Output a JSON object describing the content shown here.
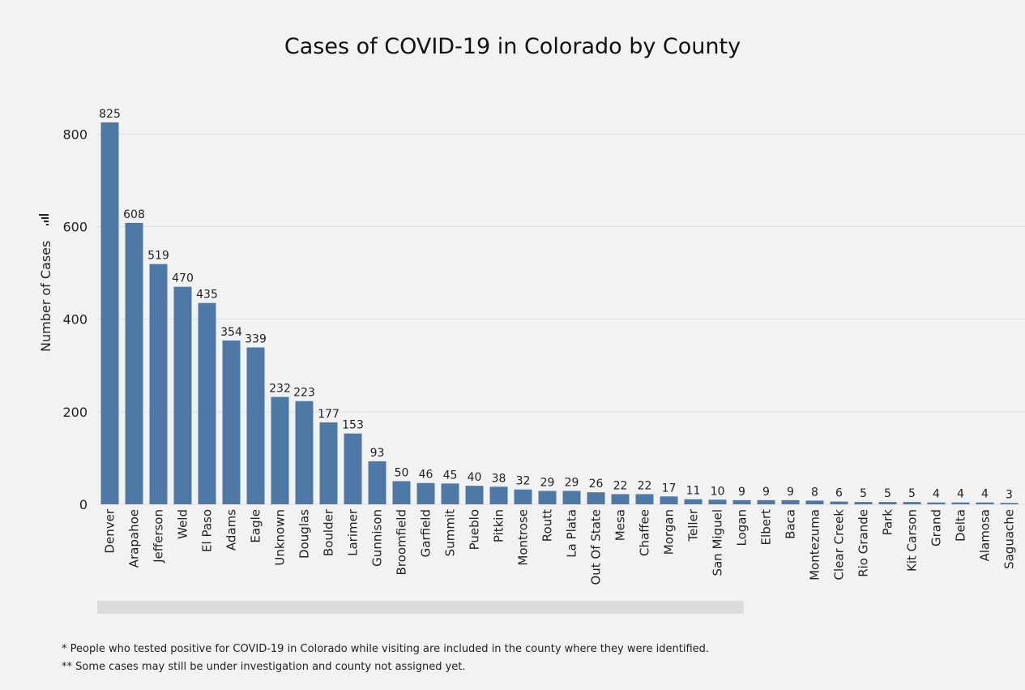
{
  "chart_data": {
    "type": "bar",
    "title": "Cases of COVID-19 in Colorado by County",
    "xlabel": "",
    "ylabel": "Number of Cases",
    "ylim": [
      0,
      825
    ],
    "yticks": [
      0,
      200,
      400,
      600,
      800
    ],
    "grid": true,
    "bar_color": "#4e79a7",
    "categories": [
      "Denver",
      "Arapahoe",
      "Jefferson",
      "Weld",
      "El Paso",
      "Adams",
      "Eagle",
      "Unknown",
      "Douglas",
      "Boulder",
      "Larimer",
      "Gunnison",
      "Broomfield",
      "Garfield",
      "Summit",
      "Pueblo",
      "Pitkin",
      "Montrose",
      "Routt",
      "La Plata",
      "Out Of State",
      "Mesa",
      "Chaffee",
      "Morgan",
      "Teller",
      "San Miguel",
      "Logan",
      "Elbert",
      "Baca",
      "Montezuma",
      "Clear Creek",
      "Rio Grande",
      "Park",
      "Kit Carson",
      "Grand",
      "Delta",
      "Alamosa",
      "Saguache"
    ],
    "values": [
      825,
      608,
      519,
      470,
      435,
      354,
      339,
      232,
      223,
      177,
      153,
      93,
      50,
      46,
      45,
      40,
      38,
      32,
      29,
      29,
      26,
      22,
      22,
      17,
      11,
      10,
      9,
      9,
      9,
      8,
      6,
      5,
      5,
      5,
      4,
      4,
      4,
      3
    ]
  },
  "footnotes": [
    "* People who tested positive for COVID-19 in Colorado while visiting are included in the county where they were identified.",
    "** Some cases may still be under investigation and county not assigned yet."
  ],
  "colors": {
    "background": "#f2f2f2",
    "gridline": "#e0e0e0",
    "scrollbar": "#dcdcdc"
  },
  "icons": [
    "sort-icon"
  ]
}
